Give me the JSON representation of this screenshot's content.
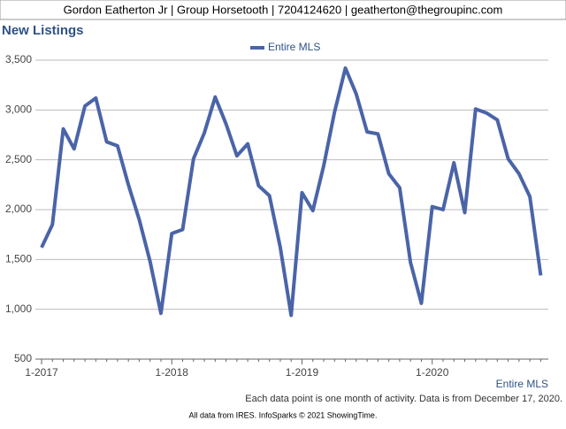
{
  "header": "Gordon Eatherton Jr | Group Horsetooth | 7204124620 | geatherton@thegroupinc.com",
  "chart_data": {
    "type": "line",
    "title": "New Listings",
    "categories": [
      "1-2017",
      null,
      null,
      null,
      null,
      null,
      null,
      null,
      null,
      null,
      null,
      null,
      "1-2018",
      null,
      null,
      null,
      null,
      null,
      null,
      null,
      null,
      null,
      null,
      null,
      "1-2019",
      null,
      null,
      null,
      null,
      null,
      null,
      null,
      null,
      null,
      null,
      null,
      "1-2020",
      null,
      null,
      null,
      null,
      null,
      null,
      null,
      null,
      null,
      null
    ],
    "series": [
      {
        "name": "Entire MLS",
        "color": "#4a64a8",
        "values": [
          1620,
          1850,
          2810,
          2610,
          3040,
          3120,
          2680,
          2640,
          2250,
          1900,
          1480,
          960,
          1760,
          1800,
          2510,
          2770,
          3130,
          2860,
          2540,
          2660,
          2240,
          2140,
          1620,
          940,
          2170,
          1990,
          2440,
          2980,
          3420,
          3160,
          2780,
          2760,
          2360,
          2220,
          1470,
          1060,
          2030,
          2000,
          2470,
          1970,
          3010,
          2970,
          2900,
          2510,
          2360,
          2130,
          1340
        ]
      }
    ],
    "ylim": [
      500,
      3500
    ],
    "yticks": [
      {
        "value": 500,
        "label": "500"
      },
      {
        "value": 1000,
        "label": "1,000"
      },
      {
        "value": 1500,
        "label": "1,500"
      },
      {
        "value": 2000,
        "label": "2,000"
      },
      {
        "value": 2500,
        "label": "2,500"
      },
      {
        "value": 3000,
        "label": "3,000"
      },
      {
        "value": 3500,
        "label": "3,500"
      }
    ],
    "grid": true,
    "legend": "top",
    "corner_label": "Entire MLS",
    "note": "Each data point is one month of activity. Data is from December 17, 2020.",
    "source": "All data from IRES. InfoSparks © 2021 ShowingTime."
  }
}
